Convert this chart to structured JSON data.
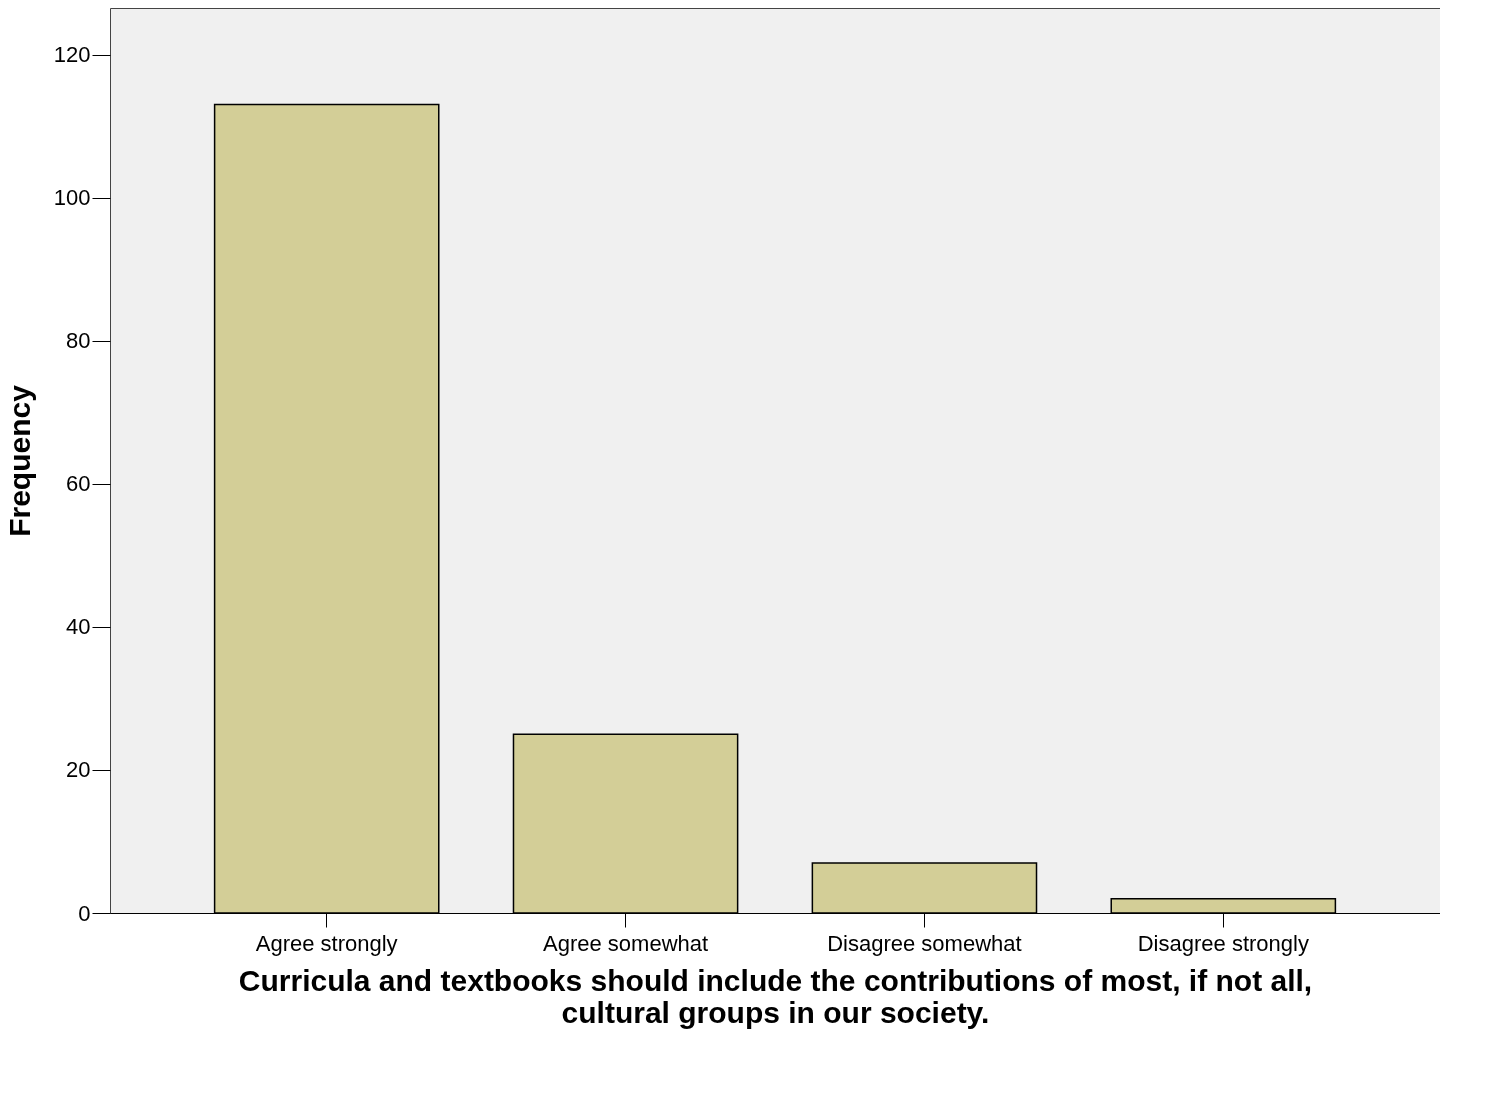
{
  "chart_data": {
    "type": "bar",
    "xlabel": "Curricula and textbooks should include the contributions of most, if not all, cultural groups in our society.",
    "ylabel": "Frequency",
    "categories": [
      "Agree strongly",
      "Agree somewhat",
      "Disagree somewhat",
      "Disagree strongly"
    ],
    "values": [
      113,
      25,
      7,
      2
    ],
    "color": "#d3ce97",
    "ylim": [
      0,
      126.5
    ],
    "yticks": [
      0,
      20,
      40,
      60,
      80,
      100,
      120
    ],
    "grid": false
  }
}
